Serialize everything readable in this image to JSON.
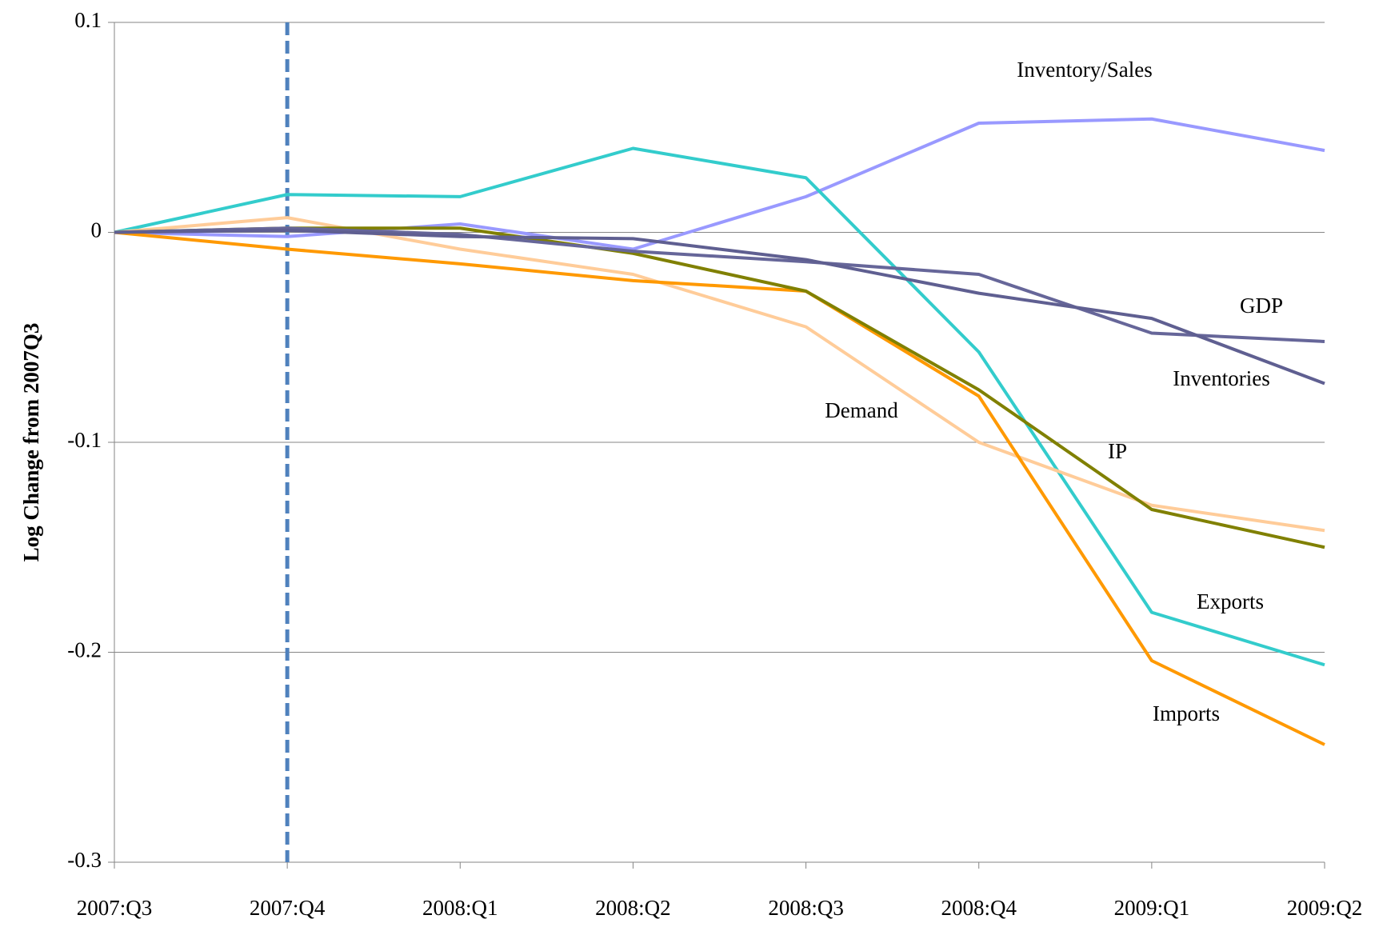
{
  "chart_data": {
    "type": "line",
    "y_label": "Log Change from 2007Q3",
    "categories": [
      "2007:Q3",
      "2007:Q4",
      "2008:Q1",
      "2008:Q2",
      "2008:Q3",
      "2008:Q4",
      "2009:Q1",
      "2009:Q2"
    ],
    "series": [
      {
        "name": "Inventory/Sales",
        "color": "#9999ff",
        "values": [
          0,
          -0.002,
          0.004,
          -0.008,
          0.017,
          0.052,
          0.054,
          0.039
        ]
      },
      {
        "name": "Exports",
        "color": "#33cccc",
        "values": [
          0,
          0.018,
          0.017,
          0.04,
          0.026,
          -0.057,
          -0.181,
          -0.206
        ]
      },
      {
        "name": "Demand",
        "color": "#ffcc99",
        "values": [
          0,
          0.007,
          -0.008,
          -0.02,
          -0.045,
          -0.1,
          -0.13,
          -0.142
        ]
      },
      {
        "name": "Imports",
        "color": "#ff9900",
        "values": [
          0,
          -0.008,
          -0.015,
          -0.023,
          -0.028,
          -0.078,
          -0.204,
          -0.244
        ]
      },
      {
        "name": "IP",
        "color": "#808000",
        "values": [
          0,
          0.002,
          0.002,
          -0.01,
          -0.028,
          -0.075,
          -0.132,
          -0.15
        ]
      },
      {
        "name": "GDP",
        "color": "#666699",
        "values": [
          0,
          0.002,
          -0.001,
          -0.009,
          -0.014,
          -0.02,
          -0.048,
          -0.052
        ]
      },
      {
        "name": "Inventories",
        "color": "#5f5f91",
        "values": [
          0,
          0.001,
          -0.002,
          -0.003,
          -0.013,
          -0.029,
          -0.041,
          -0.072
        ]
      }
    ],
    "ylim": [
      -0.3,
      0.1
    ],
    "yticks": [
      -0.3,
      -0.2,
      -0.1,
      0,
      0.1
    ],
    "grid": true,
    "vline": "2007:Q4",
    "vline_color": "#4f81bd"
  }
}
